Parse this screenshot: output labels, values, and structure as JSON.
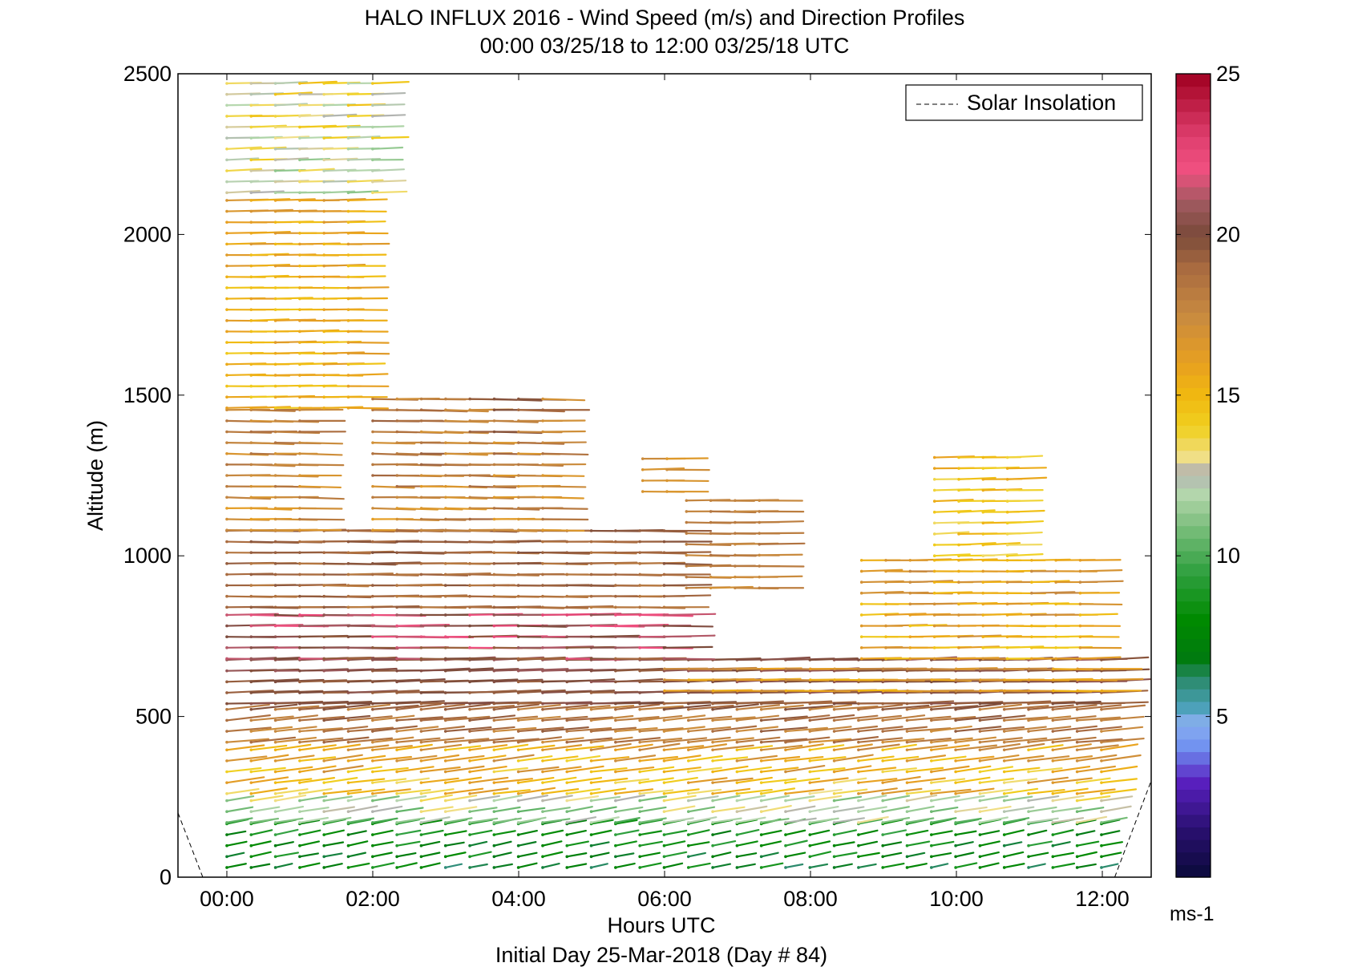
{
  "chart_data": {
    "type": "wind_barb_profile",
    "title": "HALO INFLUX 2016 - Wind Speed (m/s) and Direction Profiles",
    "subtitle": "00:00 03/25/18 to 12:00 03/25/18  UTC",
    "xlabel": "Hours UTC",
    "xlabel2": "Initial Day 25-Mar-2018 (Day # 84)",
    "ylabel": "Altitude (m)",
    "xlim_hours": [
      -0.67,
      12.67
    ],
    "ylim": [
      0,
      2500
    ],
    "x_ticks": [
      {
        "h": 0,
        "label": "00:00"
      },
      {
        "h": 2,
        "label": "02:00"
      },
      {
        "h": 4,
        "label": "04:00"
      },
      {
        "h": 6,
        "label": "06:00"
      },
      {
        "h": 8,
        "label": "08:00"
      },
      {
        "h": 10,
        "label": "10:00"
      },
      {
        "h": 12,
        "label": "12:00"
      }
    ],
    "y_ticks": [
      0,
      500,
      1000,
      1500,
      2000,
      2500
    ],
    "legend": {
      "label": "Solar Insolation",
      "style": "dashed",
      "placement": "top-right"
    },
    "colorbar": {
      "min": 0,
      "max": 25,
      "ticks": [
        5,
        10,
        15,
        20,
        25
      ],
      "unit": "ms-1"
    },
    "solar_insolation": [
      {
        "h": -0.67,
        "alt": 200
      },
      {
        "h": -0.33,
        "alt": 0
      },
      {
        "h": 12.17,
        "alt": 0
      },
      {
        "h": 12.67,
        "alt": 300
      }
    ],
    "time_step_hours": 0.333,
    "bands": [
      {
        "alt_min": 30,
        "alt_max": 170,
        "dir_deg": 240,
        "speed_min": 6,
        "speed_max": 10,
        "t_start": 0,
        "t_end": 12,
        "note": "light green / blue near surface"
      },
      {
        "alt_min": 170,
        "alt_max": 260,
        "dir_deg": 245,
        "speed_min": 10,
        "speed_max": 14,
        "t_start": 0,
        "t_end": 12
      },
      {
        "alt_min": 260,
        "alt_max": 420,
        "dir_deg": 250,
        "speed_min": 13,
        "speed_max": 18,
        "t_start": 0,
        "t_end": 12
      },
      {
        "alt_min": 420,
        "alt_max": 540,
        "dir_deg": 255,
        "speed_min": 17,
        "speed_max": 20,
        "t_start": 0,
        "t_end": 12
      },
      {
        "alt_min": 540,
        "alt_max": 680,
        "dir_deg": 265,
        "speed_min": 19,
        "speed_max": 21,
        "t_start": 0,
        "t_end": 12
      },
      {
        "alt_min": 680,
        "alt_max": 840,
        "dir_deg": 270,
        "speed_min": 19,
        "speed_max": 23,
        "t_start": 0,
        "t_end": 6.3
      },
      {
        "alt_min": 840,
        "alt_max": 1080,
        "dir_deg": 270,
        "speed_min": 18,
        "speed_max": 20,
        "t_start": 0,
        "t_end": 6
      },
      {
        "alt_min": 1080,
        "alt_max": 1460,
        "dir_deg": 272,
        "speed_min": 16,
        "speed_max": 19,
        "t_start": 0,
        "t_end": 1.3
      },
      {
        "alt_min": 1080,
        "alt_max": 1500,
        "dir_deg": 272,
        "speed_min": 16,
        "speed_max": 20,
        "t_start": 2,
        "t_end": 4.4
      },
      {
        "alt_min": 1460,
        "alt_max": 2130,
        "dir_deg": 268,
        "speed_min": 14,
        "speed_max": 17,
        "t_start": 0,
        "t_end": 1.7
      },
      {
        "alt_min": 2130,
        "alt_max": 2500,
        "dir_deg": 265,
        "speed_min": 11,
        "speed_max": 15,
        "t_start": 0,
        "t_end": 2.3
      },
      {
        "alt_min": 580,
        "alt_max": 680,
        "dir_deg": 270,
        "speed_min": 15,
        "speed_max": 18,
        "t_start": 6,
        "t_end": 12
      },
      {
        "alt_min": 680,
        "alt_max": 1000,
        "dir_deg": 268,
        "speed_min": 14,
        "speed_max": 18,
        "t_start": 8.7,
        "t_end": 12
      },
      {
        "alt_min": 1000,
        "alt_max": 1330,
        "dir_deg": 265,
        "speed_min": 13,
        "speed_max": 16,
        "t_start": 9.7,
        "t_end": 11
      },
      {
        "alt_min": 1200,
        "alt_max": 1330,
        "dir_deg": 268,
        "speed_min": 16,
        "speed_max": 18,
        "t_start": 5.7,
        "t_end": 6.3
      },
      {
        "alt_min": 900,
        "alt_max": 1200,
        "dir_deg": 270,
        "speed_min": 17,
        "speed_max": 19,
        "t_start": 6.3,
        "t_end": 7.3
      }
    ]
  }
}
